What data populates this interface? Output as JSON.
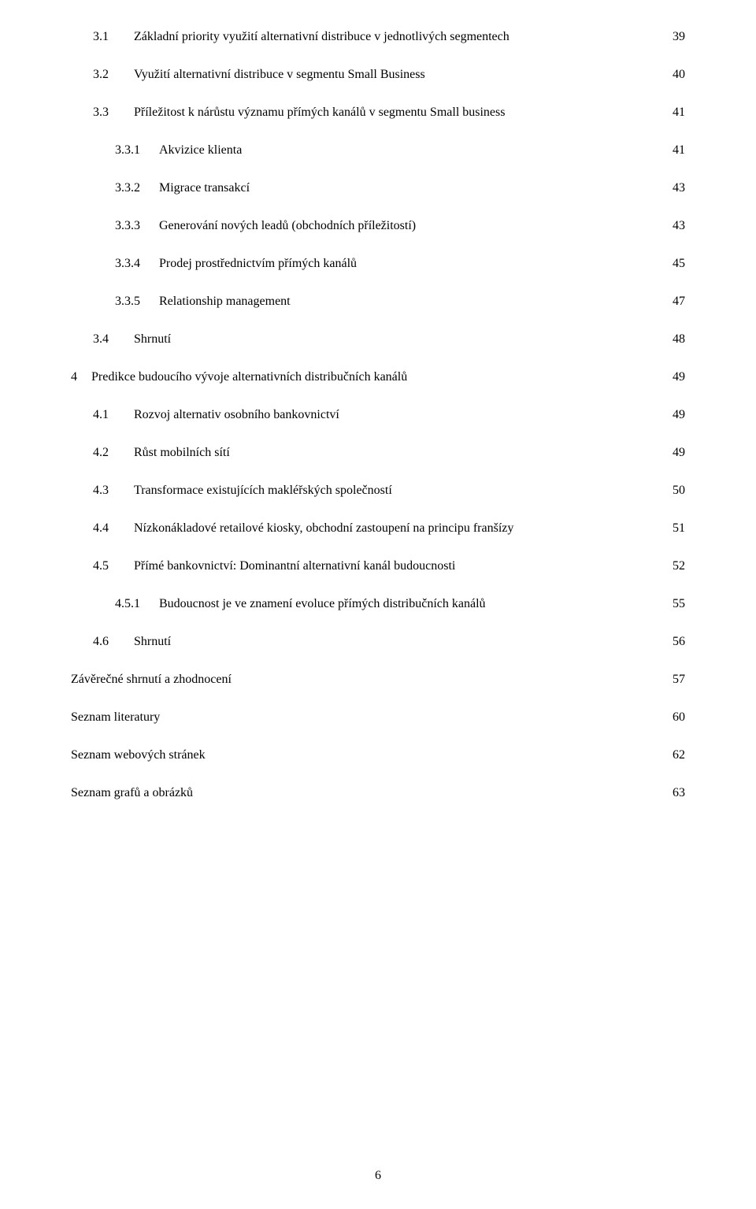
{
  "pageNumber": "6",
  "entries": [
    {
      "level": 1,
      "number": "3.1",
      "title": "Základní priority využití alternativní distribuce v jednotlivých segmentech",
      "page": "39"
    },
    {
      "level": 1,
      "number": "3.2",
      "title": "Využití alternativní distribuce v segmentu Small Business",
      "page": "40"
    },
    {
      "level": 1,
      "number": "3.3",
      "title": "Příležitost k nárůstu významu přímých kanálů v segmentu Small business",
      "page": "41"
    },
    {
      "level": 2,
      "number": "3.3.1",
      "title": "Akvizice klienta",
      "page": "41"
    },
    {
      "level": 2,
      "number": "3.3.2",
      "title": "Migrace transakcí",
      "page": "43"
    },
    {
      "level": 2,
      "number": "3.3.3",
      "title": "Generování nových leadů (obchodních příležitostí)",
      "page": "43"
    },
    {
      "level": 2,
      "number": "3.3.4",
      "title": "Prodej prostřednictvím přímých kanálů",
      "page": "45"
    },
    {
      "level": 2,
      "number": "3.3.5",
      "title": "Relationship management",
      "page": "47"
    },
    {
      "level": 1,
      "number": "3.4",
      "title": "Shrnutí",
      "page": "48"
    },
    {
      "level": 0,
      "number": "4",
      "title": "Predikce budoucího vývoje alternativních distribučních kanálů",
      "page": "49"
    },
    {
      "level": 1,
      "number": "4.1",
      "title": "Rozvoj alternativ osobního bankovnictví",
      "page": "49"
    },
    {
      "level": 1,
      "number": "4.2",
      "title": "Růst mobilních sítí",
      "page": "49"
    },
    {
      "level": 1,
      "number": "4.3",
      "title": "Transformace existujících makléřských společností",
      "page": "50"
    },
    {
      "level": 1,
      "number": "4.4",
      "title": "Nízkonákladové retailové kiosky, obchodní zastoupení na principu franšízy",
      "page": "51"
    },
    {
      "level": 1,
      "number": "4.5",
      "title": "Přímé bankovnictví: Dominantní alternativní kanál budoucnosti",
      "page": "52"
    },
    {
      "level": 2,
      "number": "4.5.1",
      "title": "Budoucnost je ve znamení evoluce přímých distribučních kanálů",
      "page": "55"
    },
    {
      "level": 1,
      "number": "4.6",
      "title": "Shrnutí",
      "page": "56"
    },
    {
      "level": 0,
      "number": "",
      "title": "Závěrečné shrnutí a zhodnocení",
      "page": "57"
    },
    {
      "level": 0,
      "number": "",
      "title": "Seznam literatury",
      "page": "60"
    },
    {
      "level": 0,
      "number": "",
      "title": "Seznam webových stránek",
      "page": "62"
    },
    {
      "level": 0,
      "number": "",
      "title": "Seznam grafů a obrázků",
      "page": "63"
    }
  ]
}
